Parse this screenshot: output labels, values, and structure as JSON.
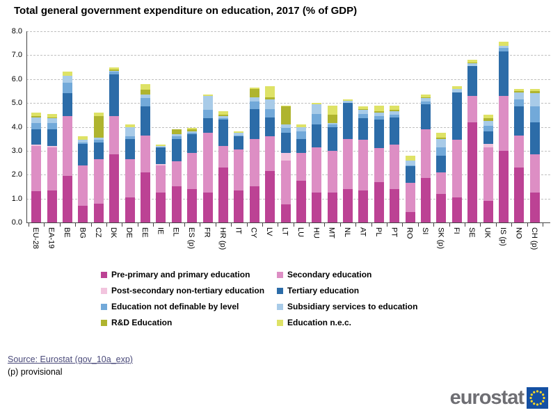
{
  "title": "Total general government expenditure on education, 2017 (% of GDP)",
  "chart_data": {
    "type": "bar",
    "stacked": true,
    "title": "Total general government expenditure on education, 2017 (% of GDP)",
    "xlabel": "",
    "ylabel": "% of GDP",
    "ylim": [
      0,
      8
    ],
    "ytick_step": 1.0,
    "y_ticks": [
      "0.0",
      "1.0",
      "2.0",
      "3.0",
      "4.0",
      "5.0",
      "6.0",
      "7.0",
      "8.0"
    ],
    "grid": "horizontal-dashed",
    "legend_position": "bottom-two-columns",
    "categories": [
      "EU-28",
      "EA-19",
      "BE",
      "BG",
      "CZ",
      "DK",
      "DE",
      "EE",
      "IE",
      "EL",
      "ES (p)",
      "FR",
      "HR (p)",
      "IT",
      "CY",
      "LV",
      "LT",
      "LU",
      "HU",
      "MT",
      "NL",
      "AT",
      "PL",
      "PT",
      "RO",
      "SI",
      "SK (p)",
      "FI",
      "SE",
      "UK",
      "IS (p)",
      "NO",
      "CH (p)"
    ],
    "series": [
      {
        "name": "Pre-primary and primary education",
        "color": "#bc4294",
        "values": [
          1.3,
          1.35,
          1.95,
          0.7,
          0.8,
          2.85,
          1.05,
          2.1,
          1.25,
          1.5,
          1.4,
          1.25,
          2.3,
          1.35,
          1.5,
          2.15,
          0.75,
          1.75,
          1.25,
          1.25,
          1.4,
          1.35,
          1.7,
          1.4,
          0.45,
          1.85,
          1.2,
          1.05,
          4.2,
          0.9,
          3.0,
          2.3,
          1.25
        ]
      },
      {
        "name": "Secondary education",
        "color": "#dd8ec4",
        "values": [
          1.9,
          1.8,
          2.5,
          1.7,
          1.85,
          1.6,
          1.6,
          1.55,
          1.15,
          1.05,
          1.5,
          2.5,
          0.9,
          1.7,
          2.0,
          1.45,
          1.85,
          1.15,
          1.9,
          1.75,
          2.1,
          2.1,
          1.4,
          1.85,
          1.2,
          2.05,
          0.9,
          2.4,
          1.1,
          2.25,
          2.3,
          1.35,
          1.6
        ]
      },
      {
        "name": "Post-secondary non-tertiary education",
        "color": "#f2c4de",
        "values": [
          0.05,
          0.05,
          0,
          0,
          0,
          0,
          0,
          0,
          0.05,
          0,
          0,
          0,
          0,
          0,
          0,
          0,
          0.3,
          0,
          0,
          0,
          0,
          0,
          0,
          0,
          0,
          0,
          0,
          0,
          0,
          0.15,
          0,
          0,
          0
        ]
      },
      {
        "name": "Tertiary education",
        "color": "#2c6ca8",
        "values": [
          0.65,
          0.7,
          0.95,
          0.9,
          0.7,
          1.75,
          0.85,
          1.2,
          0.7,
          0.95,
          0.8,
          0.6,
          1.1,
          0.55,
          1.25,
          0.8,
          0.85,
          0.6,
          0.95,
          1.0,
          1.5,
          0.9,
          1.2,
          1.15,
          0.7,
          1.05,
          0.7,
          2.0,
          1.25,
          0.5,
          1.85,
          1.2,
          1.35
        ]
      },
      {
        "name": "Education not definable by level",
        "color": "#72a9d9",
        "values": [
          0.25,
          0.25,
          0.45,
          0.05,
          0.1,
          0.1,
          0.1,
          0.35,
          0,
          0.1,
          0.05,
          0.35,
          0.05,
          0.05,
          0.3,
          0.35,
          0.2,
          0.3,
          0.45,
          0.1,
          0,
          0.2,
          0.15,
          0.1,
          0.05,
          0.1,
          0.35,
          0,
          0,
          0.25,
          0.15,
          0.3,
          0.65
        ]
      },
      {
        "name": "Subsidiary services to education",
        "color": "#a8cbe8",
        "values": [
          0.25,
          0.2,
          0.3,
          0.1,
          0.1,
          0.05,
          0.4,
          0.15,
          0.05,
          0.1,
          0.05,
          0.6,
          0.1,
          0.1,
          0.2,
          0.4,
          0.15,
          0.2,
          0.4,
          0.05,
          0.1,
          0.15,
          0.15,
          0.15,
          0.2,
          0.15,
          0.35,
          0.15,
          0.1,
          0.2,
          0.1,
          0.3,
          0.55
        ]
      },
      {
        "name": "R&D Education",
        "color": "#afb42f",
        "values": [
          0.05,
          0.05,
          0,
          0,
          0.9,
          0.05,
          0,
          0.2,
          0,
          0.2,
          0.1,
          0,
          0.05,
          0,
          0.35,
          0.1,
          0.75,
          0,
          0,
          0.35,
          0,
          0.05,
          0.05,
          0.05,
          0,
          0.05,
          0.05,
          0,
          0.05,
          0.1,
          0,
          0.05,
          0.1
        ]
      },
      {
        "name": "Education n.e.c.",
        "color": "#dee266",
        "values": [
          0.15,
          0.15,
          0.15,
          0.15,
          0.15,
          0.1,
          0.1,
          0.25,
          0.05,
          0,
          0.05,
          0.05,
          0.15,
          0.05,
          0.05,
          0.45,
          0.05,
          0.1,
          0.05,
          0.4,
          0.05,
          0.1,
          0.25,
          0.2,
          0.2,
          0.1,
          0.2,
          0.1,
          0.1,
          0.15,
          0.15,
          0.1,
          0.1
        ]
      }
    ]
  },
  "footer": {
    "source_label": "Source: Eurostat (gov_10a_exp)",
    "provisional_note": "(p) provisional"
  },
  "logo": {
    "text": "eurostat",
    "flag_bg": "#1450a3",
    "star_color": "#ffd925"
  }
}
